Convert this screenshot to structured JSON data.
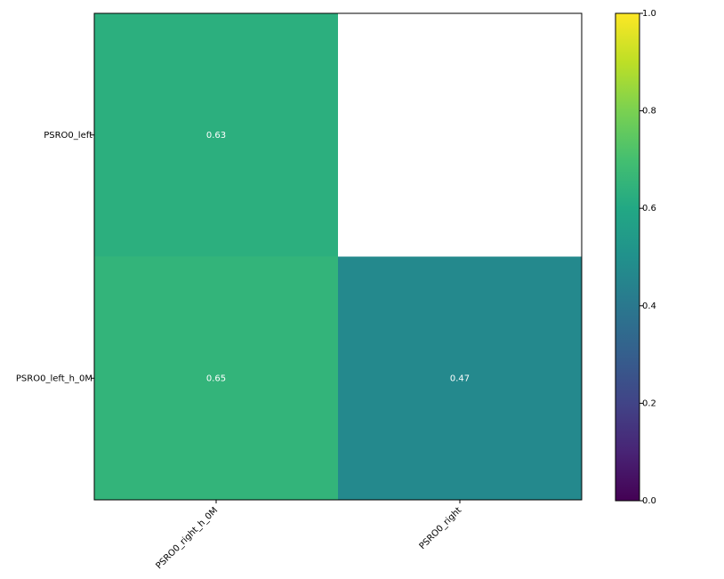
{
  "chart_data": {
    "type": "heatmap",
    "rows": [
      "PSRO0_left",
      "PSRO0_left_h_0M"
    ],
    "columns": [
      "PSRO0_right_h_0M",
      "PSRO0_right"
    ],
    "values": [
      [
        0.63,
        null
      ],
      [
        0.65,
        0.47
      ]
    ],
    "colormap": "viridis",
    "colorbar_lim": [
      0,
      1
    ],
    "colorbar_ticks": [
      {
        "value": 0,
        "label": "0.0"
      },
      0.2,
      0.4,
      0.6,
      0.8,
      {
        "value": 1,
        "label": "1.0"
      }
    ]
  }
}
